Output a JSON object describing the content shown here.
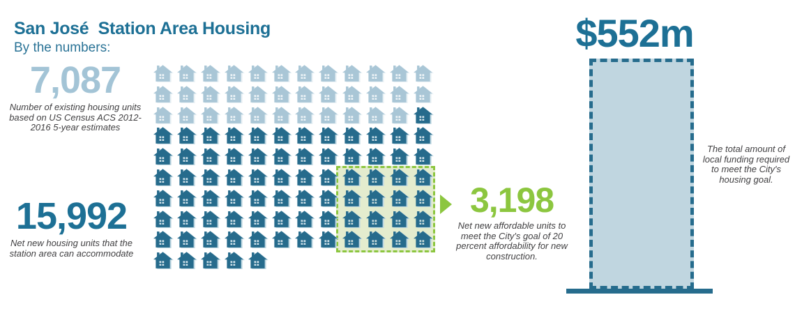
{
  "header": {
    "title": "San José  Station Area Housing",
    "subtitle": "By the numbers:"
  },
  "stats": {
    "existing": {
      "value": "7,087",
      "caption": "Number of existing housing units based on US Census ACS 2012-2016 5-year estimates"
    },
    "net_new": {
      "value": "15,992",
      "caption": "Net new housing units that the station area can accommodate"
    },
    "affordable": {
      "value": "3,198",
      "caption": "Net new affordable units to meet the City's goal of 20 percent affordability for new construction."
    },
    "funding": {
      "value": "$552m",
      "caption": "The total amount of local funding required to meet the City's housing goal."
    }
  },
  "grid": {
    "columns": 12,
    "rows": [
      {
        "light": 12,
        "dark": 0
      },
      {
        "light": 12,
        "dark": 0
      },
      {
        "light": 11,
        "dark": 1
      },
      {
        "light": 0,
        "dark": 12
      },
      {
        "light": 0,
        "dark": 12
      },
      {
        "light": 0,
        "dark": 12
      },
      {
        "light": 0,
        "dark": 12
      },
      {
        "light": 0,
        "dark": 12
      },
      {
        "light": 0,
        "dark": 12
      },
      {
        "light": 0,
        "dark": 5
      }
    ],
    "light_house_count": 35,
    "dark_house_count": 78,
    "highlight": {
      "first_row": 5,
      "last_row": 8,
      "first_col": 8,
      "last_col": 11,
      "house_count": 16
    }
  },
  "colors": {
    "teal_text": "#1d7095",
    "house_dark": "#266b8c",
    "house_light": "#a9c6d6",
    "light_blue_text": "#a3c4d6",
    "green": "#8cc63f",
    "highlight_fill": "#e4ecce",
    "bar_fill": "#c0d6e0",
    "caption_gray": "#414042"
  },
  "chart_data": [
    {
      "type": "pictograph",
      "icon": "house",
      "title": "San José  Station Area Housing — By the numbers",
      "columns": 12,
      "series": [
        {
          "name": "Number of existing housing units (US Census ACS 2012-2016 5-year estimates)",
          "value": 7087,
          "icon_count": 35,
          "color": "#a9c6d6"
        },
        {
          "name": "Net new housing units that the station area can accommodate",
          "value": 15992,
          "icon_count": 78,
          "color": "#266b8c"
        },
        {
          "name": "Net new affordable units (20 percent affordability goal, highlighted subset)",
          "value": 3198,
          "icon_count": 16,
          "color": "#266b8c",
          "highlighted": true
        }
      ]
    },
    {
      "type": "bar",
      "categories": [
        "Local funding required to meet the City's housing goal"
      ],
      "values": [
        552
      ],
      "value_labels": [
        "$552m"
      ],
      "unit": "$ millions",
      "style": "dashed-outline bar on baseline",
      "bar_fill": "#c0d6e0",
      "bar_border": "#266c8d"
    }
  ]
}
